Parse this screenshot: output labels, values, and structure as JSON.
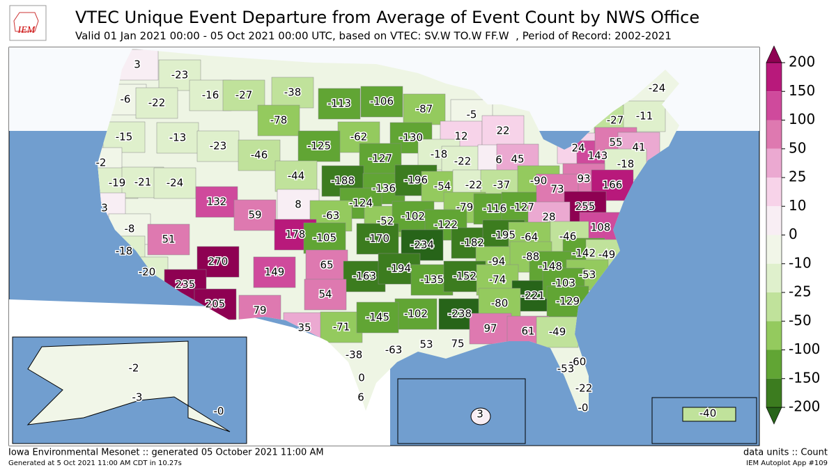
{
  "header": {
    "logo": "IEM",
    "title": "VTEC Unique Event Departure from Average of Event Count by NWS Office",
    "subtitle": "Valid 01 Jan 2021 00:00 - 05 Oct 2021 00:00 UTC, based on VTEC: SV.W TO.W FF.W  , Period of Record: 2002-2021"
  },
  "map": {
    "labels": [
      "3",
      "-23",
      "-16",
      "-27",
      "-38",
      "-113",
      "-106",
      "-87",
      "-5",
      "-6",
      "-22",
      "-78",
      "-62",
      "-130",
      "12",
      "22",
      "-27",
      "-11",
      "-24",
      "-15",
      "-13",
      "-23",
      "-46",
      "-125",
      "-127",
      "-18",
      "-22",
      "6",
      "45",
      "24",
      "143",
      "55",
      "41",
      "-18",
      "-2",
      "-19",
      "-21",
      "-24",
      "-44",
      "-188",
      "-136",
      "-196",
      "-54",
      "-22",
      "-37",
      "-90",
      "93",
      "166",
      "3",
      "132",
      "8",
      "-124",
      "-63",
      "-79",
      "-116",
      "-127",
      "73",
      "255",
      "28",
      "-8",
      "59",
      "-52",
      "-102",
      "-122",
      "108",
      "-46",
      "51",
      "178",
      "-105",
      "-170",
      "-234",
      "-182",
      "-195",
      "-64",
      "-142",
      "-49",
      "-18",
      "270",
      "149",
      "65",
      "-163",
      "-194",
      "-94",
      "-88",
      "-148",
      "-53",
      "-20",
      "235",
      "-135",
      "-152",
      "-74",
      "-221",
      "-103",
      "205",
      "54",
      "-129",
      "79",
      "-102",
      "-238",
      "-80",
      "35",
      "-71",
      "-145",
      "97",
      "61",
      "-49",
      "-38",
      "-63",
      "53",
      "75",
      "-60",
      "-53",
      "0",
      "-22",
      "6",
      "-0",
      "3",
      "-2",
      "-3",
      "-0",
      "-40"
    ]
  },
  "colorbar": {
    "ticks": [
      200,
      150,
      100,
      50,
      25,
      10,
      0,
      -10,
      -25,
      -50,
      -100,
      -150,
      -200
    ],
    "colors": [
      "#b8197b",
      "#cf4a9c",
      "#de79b0",
      "#eba9d1",
      "#f7d3e9",
      "#f8eef4",
      "#f1f6e8",
      "#dff0cc",
      "#c0e29b",
      "#94ca5e",
      "#61a534",
      "#3c7c1f"
    ],
    "over": "#8e0152",
    "under": "#276419"
  },
  "footer": {
    "left": "Iowa Environmental Mesonet :: generated 05 October 2021 11:00 AM",
    "left_small": "Generated at 5 Oct 2021 11:00 AM CDT in 10.27s",
    "right": "data units :: Count",
    "right_small": "IEM Autoplot App #109"
  }
}
